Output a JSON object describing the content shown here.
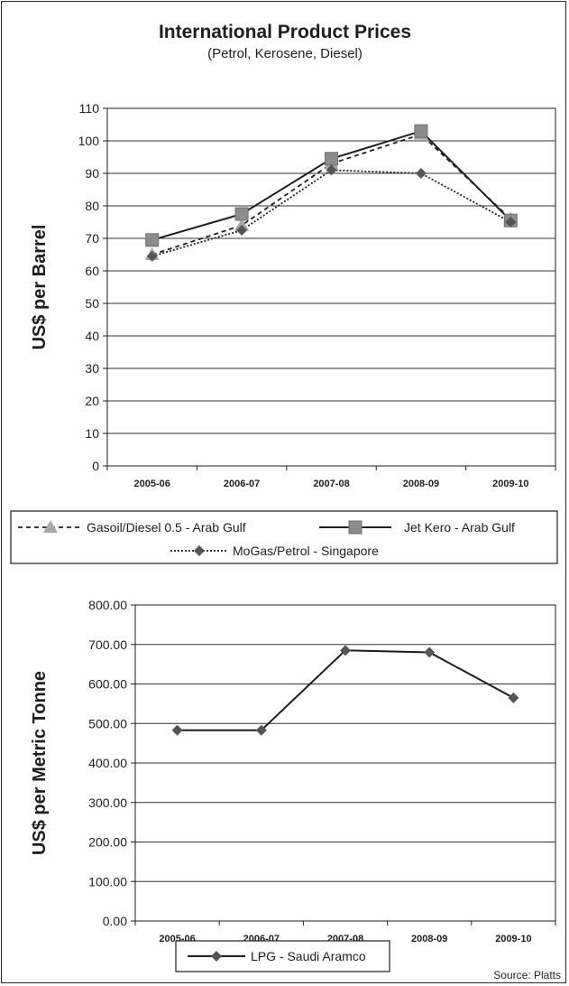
{
  "chart_data": [
    {
      "type": "line",
      "title": "International Product Prices",
      "subtitle": "(Petrol, Kerosene, Diesel)",
      "xlabel": "",
      "ylabel": "US$ per Barrel",
      "categories": [
        "2005-06",
        "2006-07",
        "2007-08",
        "2008-09",
        "2009-10"
      ],
      "ylim": [
        0,
        110
      ],
      "yticks": [
        0,
        10,
        20,
        30,
        40,
        50,
        60,
        70,
        80,
        90,
        100,
        110
      ],
      "ytick_labels": [
        "0",
        "10",
        "20",
        "30",
        "40",
        "50",
        "60",
        "70",
        "80",
        "90",
        "100",
        "110"
      ],
      "grid": true,
      "legend_position": "bottom",
      "series": [
        {
          "name": "Gasoil/Diesel 0.5 - Arab Gulf",
          "values": [
            65,
            74,
            93,
            102,
            76
          ],
          "color": "#a8a8a8",
          "line": "dashed",
          "marker": "triangle"
        },
        {
          "name": "Jet Kero - Arab Gulf",
          "values": [
            69.5,
            77.5,
            94.5,
            103,
            75.5
          ],
          "color": "#8c8c8c",
          "line": "solid",
          "marker": "square"
        },
        {
          "name": "MoGas/Petrol - Singapore",
          "values": [
            64.5,
            72.5,
            91,
            90,
            75
          ],
          "color": "#555555",
          "line": "dotted",
          "marker": "diamond"
        }
      ]
    },
    {
      "type": "line",
      "title": "",
      "xlabel": "",
      "ylabel": "US$ per Metric Tonne",
      "categories": [
        "2005-06",
        "2006-07",
        "2007-08",
        "2008-09",
        "2009-10"
      ],
      "ylim": [
        0,
        800
      ],
      "yticks": [
        0,
        100,
        200,
        300,
        400,
        500,
        600,
        700,
        800
      ],
      "ytick_labels": [
        "0.00",
        "100.00",
        "200.00",
        "300.00",
        "400.00",
        "500.00",
        "600.00",
        "700.00",
        "800.00"
      ],
      "grid": true,
      "legend_position": "bottom",
      "series": [
        {
          "name": "LPG - Saudi Aramco",
          "values": [
            483,
            483,
            685,
            680,
            565
          ],
          "color": "#555555",
          "line": "solid",
          "marker": "diamond"
        }
      ]
    }
  ],
  "source": "Source: Platts",
  "colors": {
    "line_dark": "#1e1e1e",
    "gridline": "#333333",
    "text": "#1e1e1e"
  }
}
